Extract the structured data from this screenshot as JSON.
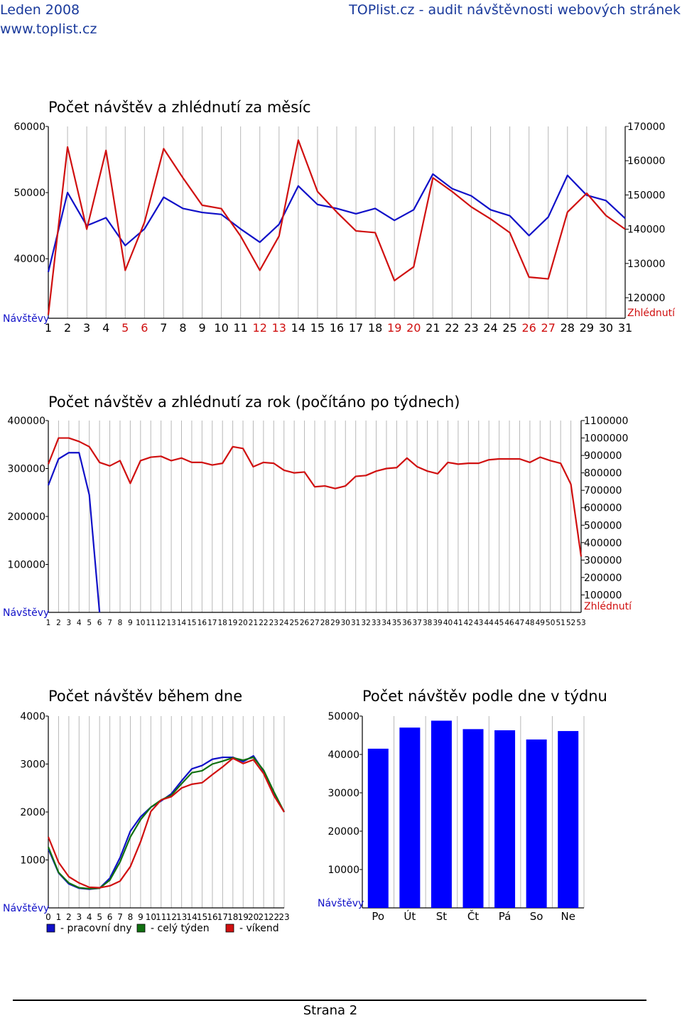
{
  "header": {
    "left_line1": "Leden 2008",
    "left_line2": "www.toplist.cz",
    "right_line1": "TOPlist.cz - audit návštěvnosti webových stránek"
  },
  "colors": {
    "visits": "#1010c8",
    "views": "#d01010",
    "weekend_label": "#d01010",
    "header": "#1a3a9c",
    "grid": "#b8b8b8",
    "bars": "#0000ff",
    "workday": "#1010c8",
    "fullweek": "#107010",
    "weekend": "#d01010"
  },
  "chart_data": [
    {
      "id": "month",
      "type": "line",
      "title": "Počet návštěv a zhlédnutí za měsíc",
      "x": [
        1,
        2,
        3,
        4,
        5,
        6,
        7,
        8,
        9,
        10,
        11,
        12,
        13,
        14,
        15,
        16,
        17,
        18,
        19,
        20,
        21,
        22,
        23,
        24,
        25,
        26,
        27,
        28,
        29,
        30,
        31
      ],
      "x_labels": [
        "1",
        "2",
        "3",
        "4",
        "5",
        "6",
        "7",
        "8",
        "9",
        "10",
        "11",
        "12",
        "13",
        "14",
        "15",
        "16",
        "17",
        "18",
        "19",
        "20",
        "21",
        "22",
        "23",
        "24",
        "25",
        "26",
        "27",
        "28",
        "29",
        "30",
        "31"
      ],
      "weekend_x": [
        5,
        6,
        12,
        13,
        19,
        20,
        26,
        27
      ],
      "y_left_label": "Návštěvy",
      "y_right_label": "Zhlédnutí",
      "y_left_ticks": [
        40000,
        50000,
        60000
      ],
      "y_left_tick_labels": [
        "40000",
        "50000",
        "60000"
      ],
      "y_left_range": [
        31000,
        60000
      ],
      "y_right_ticks": [
        120000,
        130000,
        140000,
        150000,
        160000,
        170000
      ],
      "y_right_tick_labels": [
        "120000",
        "130000",
        "140000",
        "150000",
        "160000",
        "170000"
      ],
      "y_right_range": [
        114000,
        170000
      ],
      "series": [
        {
          "name": "Návštěvy",
          "axis": "left",
          "values": [
            38000,
            50000,
            45000,
            46200,
            42000,
            44500,
            49300,
            47600,
            47000,
            46700,
            44500,
            42500,
            45200,
            51000,
            48200,
            47600,
            46800,
            47600,
            45800,
            47400,
            52800,
            50600,
            49500,
            47400,
            46500,
            43500,
            46300,
            52600,
            49600,
            48800,
            46100
          ]
        },
        {
          "name": "Zhlédnutí",
          "axis": "right",
          "values": [
            115000,
            164000,
            140000,
            163000,
            128000,
            142000,
            163500,
            155000,
            147000,
            146000,
            138000,
            128000,
            138000,
            166000,
            151000,
            145000,
            139500,
            139000,
            125000,
            129000,
            155000,
            151000,
            146500,
            143000,
            139000,
            126000,
            125500,
            145000,
            150500,
            144000,
            140000
          ]
        }
      ]
    },
    {
      "id": "year",
      "type": "line",
      "title": "Počet návštěv a zhlédnutí za rok (počítáno po týdnech)",
      "x_labels": [
        "1",
        "2",
        "3",
        "4",
        "5",
        "6",
        "7",
        "8",
        "9",
        "10",
        "11",
        "12",
        "13",
        "14",
        "15",
        "16",
        "17",
        "18",
        "19",
        "20",
        "21",
        "22",
        "23",
        "24",
        "25",
        "26",
        "27",
        "28",
        "29",
        "30",
        "31",
        "32",
        "33",
        "34",
        "35",
        "36",
        "37",
        "38",
        "39",
        "40",
        "41",
        "42",
        "43",
        "44",
        "45",
        "46",
        "47",
        "48",
        "49",
        "50",
        "51",
        "52",
        "53"
      ],
      "y_left_label": "Návštěvy",
      "y_right_label": "Zhlédnutí",
      "y_left_ticks": [
        100000,
        200000,
        300000,
        400000
      ],
      "y_left_tick_labels": [
        "100000",
        "200000",
        "300000",
        "400000"
      ],
      "y_left_range": [
        0,
        400000
      ],
      "y_right_ticks": [
        100000,
        200000,
        300000,
        400000,
        500000,
        600000,
        700000,
        800000,
        900000,
        1000000,
        1100000
      ],
      "y_right_tick_labels": [
        "100000",
        "200000",
        "300000",
        "400000",
        "500000",
        "600000",
        "700000",
        "800000",
        "900000",
        "1000000",
        "1100000"
      ],
      "y_right_range": [
        0,
        1100000
      ],
      "series": [
        {
          "name": "Návštěvy",
          "axis": "left",
          "values": [
            265000,
            320000,
            333000,
            333000,
            245000,
            0
          ]
        },
        {
          "name": "Zhlédnutí",
          "axis": "right",
          "values": [
            850000,
            1000000,
            1000000,
            980000,
            950000,
            860000,
            840000,
            870000,
            740000,
            870000,
            890000,
            895000,
            870000,
            885000,
            860000,
            860000,
            845000,
            855000,
            950000,
            940000,
            835000,
            860000,
            855000,
            815000,
            800000,
            805000,
            720000,
            725000,
            710000,
            725000,
            780000,
            785000,
            810000,
            825000,
            830000,
            885000,
            835000,
            810000,
            795000,
            860000,
            850000,
            855000,
            855000,
            875000,
            880000,
            880000,
            880000,
            860000,
            890000,
            870000,
            855000,
            735000,
            320000
          ]
        }
      ]
    },
    {
      "id": "day",
      "type": "line",
      "title": "Počet návštěv během dne",
      "x_labels": [
        "0",
        "1",
        "2",
        "3",
        "4",
        "5",
        "6",
        "7",
        "8",
        "9",
        "10",
        "11",
        "12",
        "13",
        "14",
        "15",
        "16",
        "17",
        "18",
        "19",
        "20",
        "21",
        "22",
        "23"
      ],
      "y_left_label": "Návštěvy",
      "y_ticks": [
        1000,
        2000,
        3000,
        4000
      ],
      "y_tick_labels": [
        "1000",
        "2000",
        "3000",
        "4000"
      ],
      "y_range": [
        0,
        4000
      ],
      "legend": [
        "- pracovní dny",
        "- celý týden",
        "- víkend"
      ],
      "series": [
        {
          "name": "pracovní dny",
          "values": [
            1230,
            730,
            500,
            410,
            390,
            410,
            620,
            1050,
            1600,
            1900,
            2100,
            2230,
            2380,
            2650,
            2900,
            2970,
            3100,
            3140,
            3140,
            3050,
            3170,
            2850,
            2400,
            2000
          ]
        },
        {
          "name": "celý týden",
          "values": [
            1270,
            740,
            520,
            420,
            400,
            410,
            580,
            960,
            1480,
            1840,
            2100,
            2250,
            2350,
            2590,
            2820,
            2860,
            3000,
            3060,
            3130,
            3080,
            3140,
            2870,
            2420,
            2000
          ]
        },
        {
          "name": "víkend",
          "values": [
            1480,
            950,
            650,
            520,
            430,
            420,
            460,
            560,
            860,
            1380,
            2010,
            2250,
            2320,
            2500,
            2580,
            2610,
            2780,
            2940,
            3120,
            3010,
            3090,
            2800,
            2340,
            2000
          ]
        }
      ]
    },
    {
      "id": "week",
      "type": "bar",
      "title": "Počet návštěv podle dne v týdnu",
      "categories": [
        "Po",
        "Út",
        "St",
        "Čt",
        "Pá",
        "So",
        "Ne"
      ],
      "y_left_label": "Návštěvy",
      "y_ticks": [
        10000,
        20000,
        30000,
        40000,
        50000
      ],
      "y_tick_labels": [
        "10000",
        "20000",
        "30000",
        "40000",
        "50000"
      ],
      "y_range": [
        0,
        50000
      ],
      "values": [
        41500,
        47000,
        48800,
        46600,
        46300,
        43900,
        46100
      ]
    }
  ]
}
